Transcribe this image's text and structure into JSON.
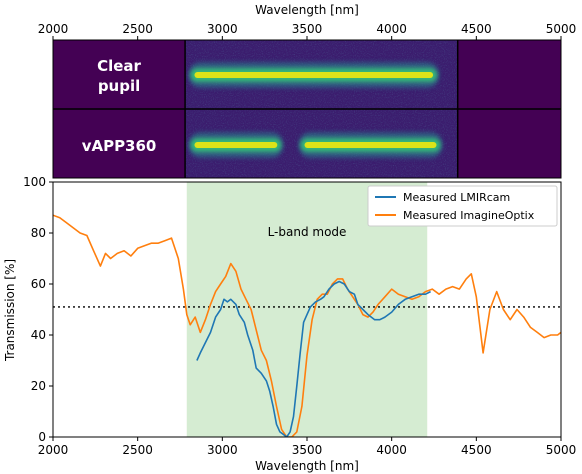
{
  "chart_data": [
    {
      "type": "heatmap",
      "xlabel": "Wavelength [nm]",
      "xlim": [
        2000,
        5000
      ],
      "xticks": [
        2000,
        2500,
        3000,
        3500,
        4000,
        4500,
        5000
      ],
      "xaxis_position": "top",
      "detector_range": [
        2780,
        4390
      ],
      "background_color": "#440154",
      "panels": [
        {
          "label": "Clear\npupil",
          "label_lines": [
            "Clear",
            "pupil"
          ],
          "trace_segments": [
            [
              2800,
              4280
            ]
          ]
        },
        {
          "label": "vAPP360",
          "label_lines": [
            "vAPP360"
          ],
          "trace_segments": [
            [
              2800,
              3360
            ],
            [
              3450,
              4300
            ]
          ]
        }
      ]
    },
    {
      "type": "line",
      "xlabel": "Wavelength [nm]",
      "ylabel": "Transmission [%]",
      "xlim": [
        2000,
        5000
      ],
      "ylim": [
        0,
        100
      ],
      "xticks": [
        2000,
        2500,
        3000,
        3500,
        4000,
        4500,
        5000
      ],
      "yticks": [
        0,
        20,
        40,
        60,
        80,
        100
      ],
      "grid": false,
      "legend": "top-right",
      "annotations": [
        {
          "type": "span",
          "x": [
            2790,
            4210
          ],
          "color": "#d5ecd2",
          "label": "L-band mode"
        },
        {
          "type": "hline",
          "y": 51,
          "style": "dotted"
        }
      ],
      "series": [
        {
          "name": "Measured LMIRcam",
          "color": "#1f77b4",
          "x": [
            2850,
            2870,
            2900,
            2930,
            2960,
            2990,
            3010,
            3030,
            3050,
            3080,
            3100,
            3130,
            3150,
            3180,
            3200,
            3230,
            3260,
            3280,
            3300,
            3320,
            3340,
            3360,
            3380,
            3400,
            3420,
            3440,
            3460,
            3480,
            3500,
            3520,
            3550,
            3580,
            3600,
            3630,
            3660,
            3690,
            3720,
            3750,
            3780,
            3800,
            3830,
            3860,
            3880,
            3900,
            3930,
            3960,
            4000,
            4040,
            4080,
            4120,
            4160,
            4200,
            4230
          ],
          "y": [
            30,
            33,
            37,
            41,
            47,
            50,
            54,
            53,
            54,
            52,
            48,
            45,
            40,
            34,
            27,
            25,
            22,
            18,
            12,
            5,
            2,
            1,
            0,
            2,
            8,
            20,
            33,
            45,
            48,
            51,
            53,
            54,
            55,
            58,
            60,
            61,
            60,
            57,
            56,
            52,
            50,
            48,
            47,
            46,
            46,
            47,
            49,
            52,
            54,
            55,
            56,
            56,
            57
          ]
        },
        {
          "name": "Measured ImagineOptix",
          "color": "#ff7f0e",
          "x": [
            2000,
            2040,
            2080,
            2120,
            2160,
            2200,
            2240,
            2280,
            2310,
            2340,
            2380,
            2420,
            2460,
            2500,
            2540,
            2580,
            2620,
            2660,
            2700,
            2740,
            2770,
            2790,
            2810,
            2840,
            2870,
            2900,
            2930,
            2960,
            2990,
            3020,
            3050,
            3080,
            3110,
            3140,
            3170,
            3200,
            3230,
            3260,
            3290,
            3320,
            3350,
            3380,
            3410,
            3440,
            3470,
            3500,
            3530,
            3560,
            3590,
            3620,
            3650,
            3680,
            3710,
            3740,
            3770,
            3800,
            3830,
            3860,
            3890,
            3920,
            3960,
            4000,
            4040,
            4080,
            4120,
            4160,
            4200,
            4240,
            4280,
            4320,
            4360,
            4400,
            4440,
            4470,
            4500,
            4540,
            4580,
            4620,
            4660,
            4700,
            4740,
            4780,
            4820,
            4860,
            4900,
            4940,
            4980,
            5000
          ],
          "y": [
            87,
            86,
            84,
            82,
            80,
            79,
            73,
            67,
            72,
            70,
            72,
            73,
            71,
            74,
            75,
            76,
            76,
            77,
            78,
            70,
            58,
            48,
            44,
            47,
            41,
            46,
            52,
            57,
            60,
            63,
            68,
            65,
            58,
            54,
            50,
            42,
            34,
            30,
            22,
            12,
            3,
            0,
            0,
            2,
            12,
            32,
            46,
            54,
            56,
            56,
            60,
            62,
            62,
            58,
            55,
            52,
            48,
            47,
            49,
            52,
            55,
            58,
            56,
            55,
            54,
            55,
            57,
            58,
            56,
            58,
            59,
            58,
            62,
            64,
            55,
            33,
            50,
            57,
            50,
            46,
            50,
            47,
            43,
            41,
            39,
            40,
            40,
            41
          ]
        }
      ]
    }
  ]
}
